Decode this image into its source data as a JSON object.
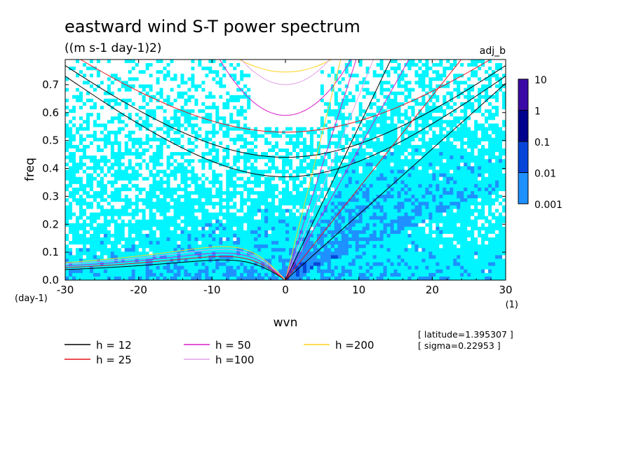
{
  "chart_data": {
    "type": "heatmap",
    "title": "eastward wind S-T power spectrum",
    "subtitle": "((m s-1 day-1)2)",
    "tag": "adj_b",
    "xlabel": "wvn",
    "ylabel": "freq",
    "x_unit": "(1)",
    "y_unit": "(day-1)",
    "xlim": [
      -30,
      30
    ],
    "ylim": [
      0,
      0.79
    ],
    "x_ticks": [
      -30,
      -20,
      -10,
      0,
      10,
      20,
      30
    ],
    "x_tick_labels": [
      "-30",
      "-20",
      "-10",
      "0",
      "10",
      "20",
      "30"
    ],
    "y_ticks": [
      0.0,
      0.1,
      0.2,
      0.3,
      0.4,
      0.5,
      0.6,
      0.7
    ],
    "y_tick_labels": [
      "0.0",
      "0.1",
      "0.2",
      "0.3",
      "0.4",
      "0.5",
      "0.6",
      "0.7"
    ],
    "colorbar": {
      "scale": "log",
      "levels": [
        "10",
        "1",
        "0.1",
        "0.01",
        "0.001"
      ],
      "colors": [
        "#3b0aa6",
        "#00008f",
        "#0645d8",
        "#1e90ff",
        "#00f5ff"
      ]
    },
    "series": [
      {
        "name": "h = 12",
        "color": "#000000"
      },
      {
        "name": "h = 25",
        "color": "#e8101a"
      },
      {
        "name": "h = 50",
        "color": "#d81cc8"
      },
      {
        "name": "h =100",
        "color": "#e2a0e6"
      },
      {
        "name": "h =200",
        "color": "#ffd21a"
      }
    ],
    "info": [
      "[ latitude=1.395307 ]",
      "[ sigma=0.22953 ]"
    ]
  }
}
